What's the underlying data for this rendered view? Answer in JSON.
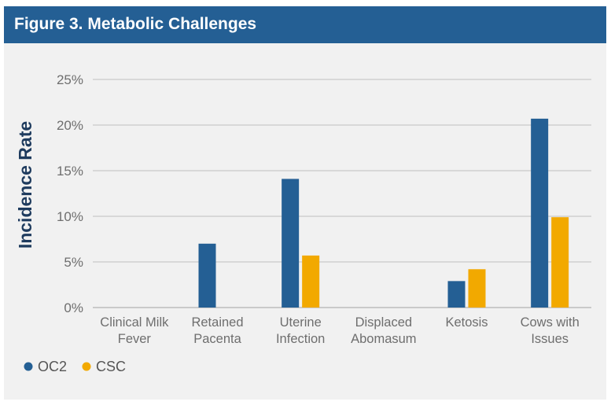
{
  "figure_title": "Figure 3. Metabolic Challenges",
  "colors": {
    "header": "#245f94",
    "OC2": "#245f94",
    "CSC": "#f2a900"
  },
  "chart_data": {
    "type": "bar",
    "title": "Figure 3. Metabolic Challenges",
    "ylabel": "Incidence Rate",
    "xlabel": "",
    "ylim": [
      0,
      25
    ],
    "yticks": [
      "0%",
      "5%",
      "10%",
      "15%",
      "20%",
      "25%"
    ],
    "ytick_values": [
      0,
      5,
      10,
      15,
      20,
      25
    ],
    "categories": [
      [
        "Clinical Milk",
        "Fever"
      ],
      [
        "Retained",
        "Pacenta"
      ],
      [
        "Uterine",
        "Infection"
      ],
      [
        "Displaced",
        "Abomasum"
      ],
      [
        "Ketosis"
      ],
      [
        "Cows with",
        "Issues"
      ]
    ],
    "series": [
      {
        "name": "OC2",
        "values": [
          0,
          7.0,
          14.1,
          0,
          2.9,
          20.7
        ]
      },
      {
        "name": "CSC",
        "values": [
          0,
          0,
          5.7,
          0,
          4.2,
          9.9
        ]
      }
    ],
    "legend": "bottom-left",
    "grid": true
  }
}
